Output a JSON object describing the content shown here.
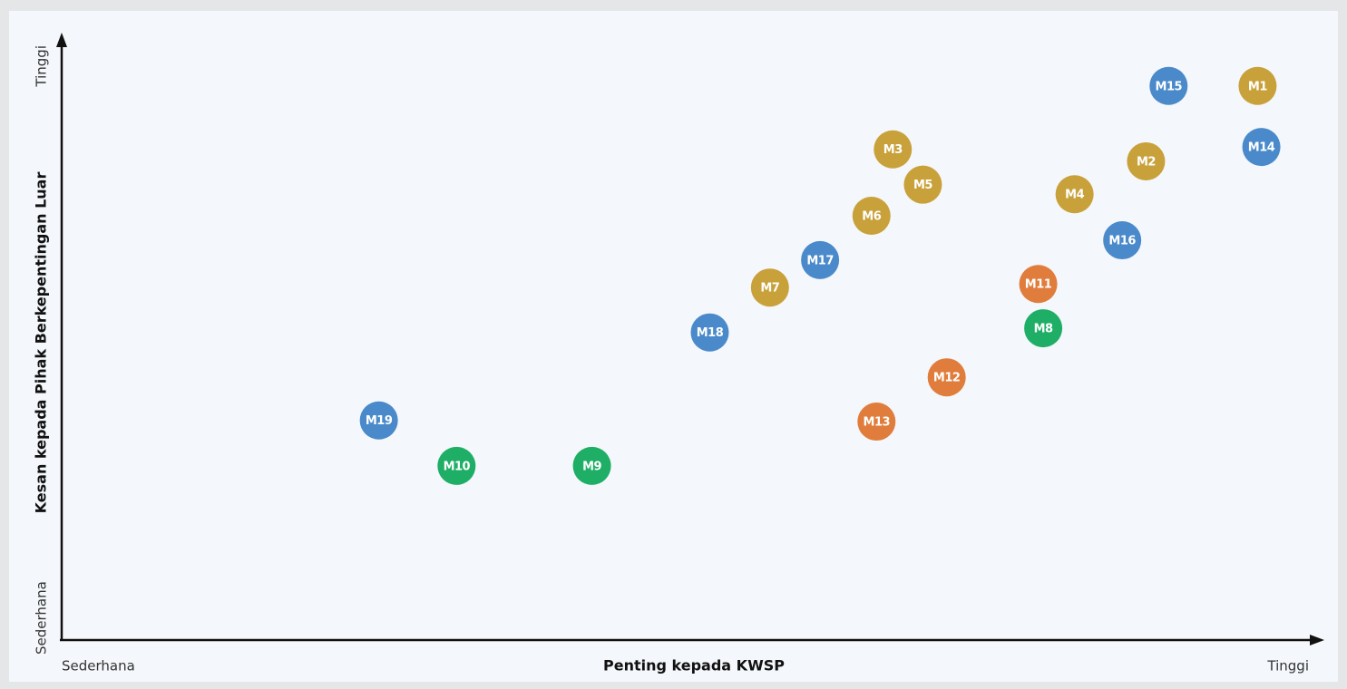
{
  "chart_data": {
    "type": "scatter",
    "x_label": "Penting kepada KWSP",
    "y_label": "Kesan kepada Pihak Berkepentingan Luar",
    "x_low": "Sederhana",
    "x_high": "Tinggi",
    "y_low": "Sederhana",
    "y_high": "Tinggi",
    "xlim": [
      0,
      100
    ],
    "ylim": [
      0,
      100
    ],
    "points": [
      {
        "label": "M15",
        "x": 88.3,
        "y": 91.7,
        "color": "#4a8acb"
      },
      {
        "label": "M1",
        "x": 95.4,
        "y": 91.7,
        "color": "#c9a13b"
      },
      {
        "label": "M14",
        "x": 95.7,
        "y": 81.5,
        "color": "#4a8acb"
      },
      {
        "label": "M2",
        "x": 86.5,
        "y": 79.1,
        "color": "#c9a13b"
      },
      {
        "label": "M3",
        "x": 66.3,
        "y": 81.1,
        "color": "#c9a13b"
      },
      {
        "label": "M5",
        "x": 68.7,
        "y": 75.2,
        "color": "#c9a13b"
      },
      {
        "label": "M4",
        "x": 80.8,
        "y": 73.6,
        "color": "#c9a13b"
      },
      {
        "label": "M6",
        "x": 64.6,
        "y": 70.0,
        "color": "#c9a13b"
      },
      {
        "label": "M16",
        "x": 84.6,
        "y": 65.9,
        "color": "#4a8acb"
      },
      {
        "label": "M17",
        "x": 60.5,
        "y": 62.6,
        "color": "#4a8acb"
      },
      {
        "label": "M11",
        "x": 77.9,
        "y": 58.6,
        "color": "#e07d3c"
      },
      {
        "label": "M7",
        "x": 56.5,
        "y": 58.0,
        "color": "#c9a13b"
      },
      {
        "label": "M8",
        "x": 78.3,
        "y": 51.2,
        "color": "#1fae66"
      },
      {
        "label": "M18",
        "x": 51.7,
        "y": 50.5,
        "color": "#4a8acb"
      },
      {
        "label": "M12",
        "x": 70.6,
        "y": 43.0,
        "color": "#e07d3c"
      },
      {
        "label": "M13",
        "x": 65.0,
        "y": 35.6,
        "color": "#e07d3c"
      },
      {
        "label": "M19",
        "x": 25.3,
        "y": 35.8,
        "color": "#4a8acb"
      },
      {
        "label": "M10",
        "x": 31.5,
        "y": 28.2,
        "color": "#1fae66"
      },
      {
        "label": "M9",
        "x": 42.3,
        "y": 28.2,
        "color": "#1fae66"
      }
    ]
  }
}
